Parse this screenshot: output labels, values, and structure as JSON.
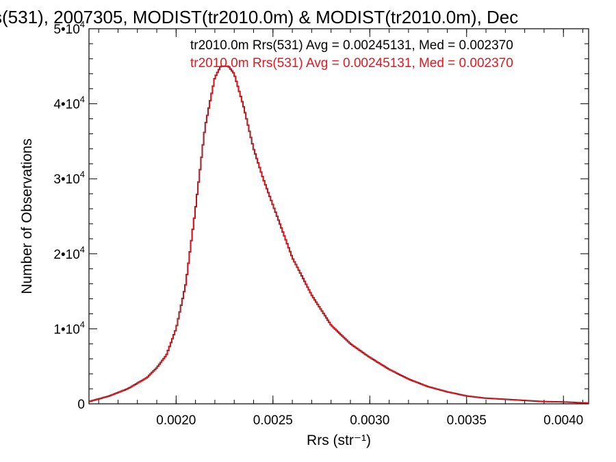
{
  "chart_data": {
    "type": "line",
    "title": "s(531), 2007305, MODIST(tr2010.0m) & MODIST(tr2010.0m), Dec",
    "xlabel": "Rrs (str⁻¹)",
    "ylabel": "Number of Observations",
    "xlim": [
      0.00155,
      0.00413
    ],
    "ylim": [
      0,
      50000
    ],
    "grid": false,
    "legend_position": "top-right",
    "x_ticks": [
      {
        "value": 0.002,
        "label": "0.0020"
      },
      {
        "value": 0.0025,
        "label": "0.0025"
      },
      {
        "value": 0.003,
        "label": "0.0030"
      },
      {
        "value": 0.0035,
        "label": "0.0035"
      },
      {
        "value": 0.004,
        "label": "0.0040"
      }
    ],
    "y_ticks": [
      {
        "value": 0,
        "base": "0",
        "exp": ""
      },
      {
        "value": 10000,
        "base": "1•10",
        "exp": "4"
      },
      {
        "value": 20000,
        "base": "2•10",
        "exp": "4"
      },
      {
        "value": 30000,
        "base": "3•10",
        "exp": "4"
      },
      {
        "value": 40000,
        "base": "4•10",
        "exp": "4"
      },
      {
        "value": 50000,
        "base": "5•10",
        "exp": "4"
      }
    ],
    "x": [
      0.00155,
      0.00165,
      0.00175,
      0.00185,
      0.0019,
      0.00195,
      0.002,
      0.00205,
      0.0021,
      0.00215,
      0.0022,
      0.00223,
      0.00227,
      0.0023,
      0.00235,
      0.0024,
      0.00245,
      0.0025,
      0.00255,
      0.0026,
      0.0027,
      0.0028,
      0.0029,
      0.003,
      0.0031,
      0.0032,
      0.0033,
      0.0034,
      0.0035,
      0.0036,
      0.0037,
      0.0038,
      0.0039,
      0.004,
      0.00413
    ],
    "series": [
      {
        "name": "tr2010.0m Rrs(531) Avg = 0.00245131, Med = 0.002370",
        "color": "#000000",
        "values": [
          300,
          1000,
          2000,
          3500,
          4800,
          6500,
          10000,
          16000,
          26000,
          37000,
          43500,
          45000,
          45000,
          44000,
          39500,
          34000,
          30000,
          26500,
          23000,
          19500,
          14500,
          10500,
          8000,
          6200,
          4600,
          3300,
          2300,
          1600,
          1050,
          750,
          600,
          450,
          300,
          250,
          100
        ]
      },
      {
        "name": "tr2010.0m Rrs(531) Avg = 0.00245131, Med = 0.002370",
        "color": "#e8141e",
        "values": [
          300,
          1000,
          2000,
          3500,
          4800,
          6500,
          10000,
          16000,
          26000,
          37000,
          43500,
          45000,
          45000,
          44000,
          39500,
          34000,
          30000,
          26500,
          23000,
          19500,
          14500,
          10500,
          8000,
          6200,
          4600,
          3300,
          2300,
          1600,
          1050,
          750,
          600,
          450,
          300,
          250,
          100
        ]
      }
    ]
  }
}
